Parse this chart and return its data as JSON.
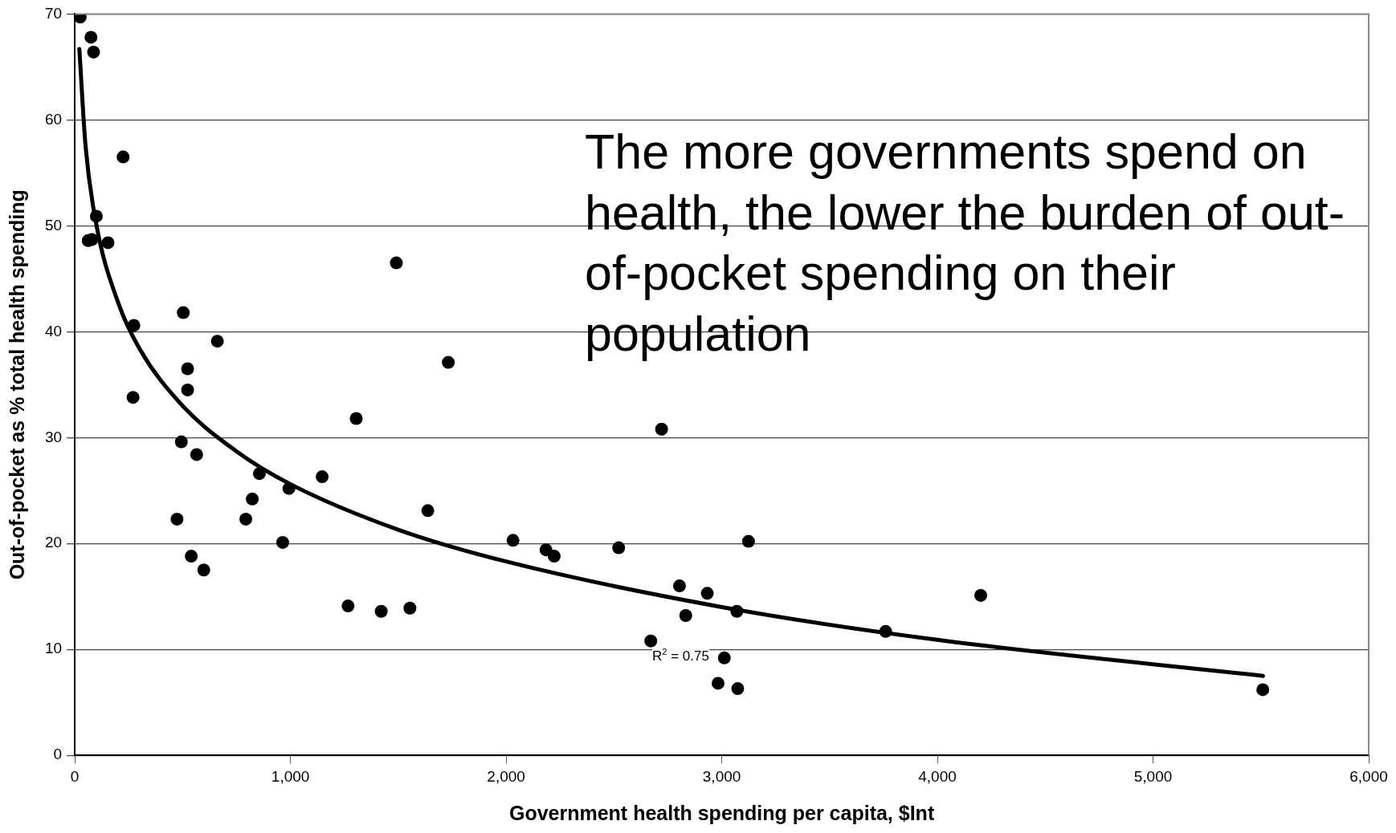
{
  "chart_data": {
    "type": "scatter",
    "xlabel": "Government health spending per capita, $Int",
    "ylabel": "Out-of-pocket as % total health spending",
    "annotations": [
      "The more governments spend on health, the lower the burden of out-of-pocket spending on their population",
      "R$^{2}$ = 0.75"
    ],
    "xlim": [
      0,
      6000
    ],
    "xticks": [
      0,
      {
        "value": 1000,
        "label": "1,000"
      },
      {
        "value": 2000,
        "label": "2,000"
      },
      {
        "value": 3000,
        "label": "3,000"
      },
      {
        "value": 4000,
        "label": "4,000"
      },
      {
        "value": 5000,
        "label": "5,000"
      },
      {
        "value": 6000,
        "label": "6,000"
      }
    ],
    "ylim": [
      0,
      70
    ],
    "yticks": [
      0,
      10,
      20,
      30,
      40,
      50,
      60,
      70
    ],
    "grid": "y",
    "legend": false,
    "marker": "circle",
    "series": [
      {
        "color": "#000000",
        "x": [
          25,
          75,
          87,
          224,
          100,
          62,
          79,
          154,
          274,
          270,
          503,
          661,
          523,
          523,
          494,
          565,
          474,
          540,
          598,
          793,
          823,
          856,
          993,
          964,
          1147,
          1267,
          1305,
          1421,
          1491,
          1554,
          1637,
          1732,
          2032,
          2185,
          2223,
          2522,
          2671,
          2721,
          2804,
          2833,
          2933,
          2983,
          3012,
          3070,
          3074,
          3124,
          3760,
          4201,
          5509
        ],
        "values": [
          69.7,
          67.8,
          66.4,
          56.5,
          50.9,
          48.6,
          48.7,
          48.4,
          40.6,
          33.8,
          41.8,
          39.1,
          36.5,
          34.5,
          29.6,
          28.4,
          22.3,
          18.8,
          17.5,
          22.3,
          24.2,
          26.6,
          25.2,
          20.1,
          26.3,
          14.1,
          31.8,
          13.6,
          46.5,
          13.9,
          23.1,
          37.1,
          20.3,
          19.4,
          18.8,
          19.6,
          10.8,
          30.8,
          16.0,
          13.2,
          15.3,
          6.8,
          9.2,
          13.6,
          6.3,
          20.2,
          11.7,
          15.1,
          6.2
        ]
      },
      {
        "type": "line",
        "color": "#000000",
        "marker": "none",
        "line_style": "solid",
        "x": [
          21,
          50,
          100,
          200,
          300,
          500,
          750,
          1000,
          1500,
          2000,
          3000,
          4000,
          5510
        ],
        "values": [
          66.7,
          57.5,
          50.1,
          42.8,
          38.4,
          33.0,
          28.7,
          25.6,
          21.3,
          18.3,
          14.0,
          10.9,
          7.5
        ]
      }
    ]
  }
}
